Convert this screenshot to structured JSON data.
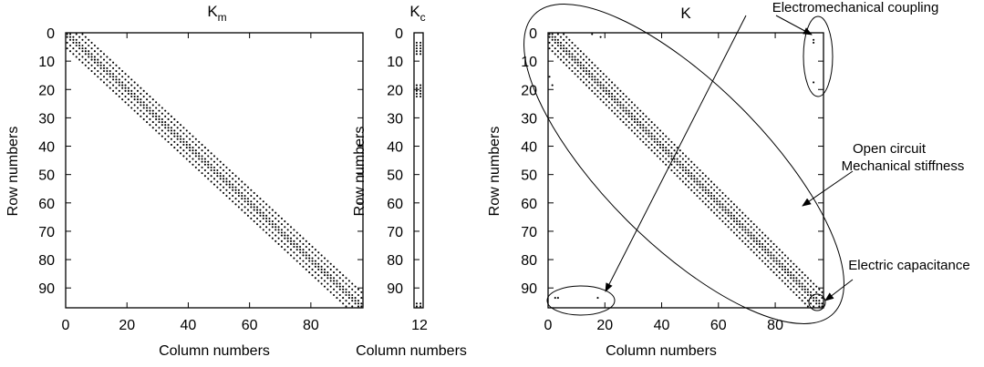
{
  "chart_data": [
    {
      "id": "km",
      "type": "scatter",
      "title": "K",
      "title_sub": "m",
      "xlabel": "Column numbers",
      "ylabel": "Row numbers",
      "xlim": [
        0,
        97
      ],
      "ylim": [
        97,
        0
      ],
      "xticks": [
        "0",
        "20",
        "40",
        "60",
        "80"
      ],
      "yticks": [
        "0",
        "10",
        "20",
        "30",
        "40",
        "50",
        "60",
        "70",
        "80",
        "90"
      ],
      "sparsity": {
        "n": 97,
        "half_bandwidth": 5,
        "description": "banded mechanical stiffness matrix"
      }
    },
    {
      "id": "kc",
      "type": "scatter",
      "title": "K",
      "title_sub": "c",
      "xlabel": "Column numbers",
      "ylabel": "Row numbers",
      "xlim": [
        0,
        12
      ],
      "ylim": [
        97,
        0
      ],
      "xticks": [
        "12"
      ],
      "yticks": [
        "0",
        "10",
        "20",
        "30",
        "40",
        "50",
        "60",
        "70",
        "80",
        "90"
      ],
      "sparsity": {
        "n_rows": 97,
        "n_cols": 12,
        "nonzero_rows": [
          [
            3,
            7
          ],
          [
            18,
            22
          ],
          [
            95,
            96
          ]
        ]
      }
    },
    {
      "id": "k",
      "type": "scatter",
      "title": "K",
      "xlabel": "Column numbers",
      "ylabel": "Row numbers",
      "xlim": [
        0,
        97
      ],
      "ylim": [
        97,
        0
      ],
      "xticks": [
        "0",
        "20",
        "40",
        "60",
        "80"
      ],
      "yticks": [
        "0",
        "10",
        "20",
        "30",
        "40",
        "50",
        "60",
        "70",
        "80",
        "90"
      ],
      "sparsity": {
        "n": 97,
        "half_bandwidth": 5,
        "coupling_entries": [
          [
            2,
            93
          ],
          [
            3,
            93
          ],
          [
            17,
            93
          ],
          [
            93,
            2
          ],
          [
            93,
            3
          ],
          [
            93,
            17
          ],
          [
            0,
            15
          ],
          [
            1,
            18
          ],
          [
            15,
            0
          ],
          [
            18,
            1
          ]
        ]
      },
      "annotations": [
        {
          "label": "Electromechanical coupling"
        },
        {
          "label": "Open circuit"
        },
        {
          "label": "Mechanical stiffness"
        },
        {
          "label": "Electric capacitance"
        }
      ]
    }
  ]
}
